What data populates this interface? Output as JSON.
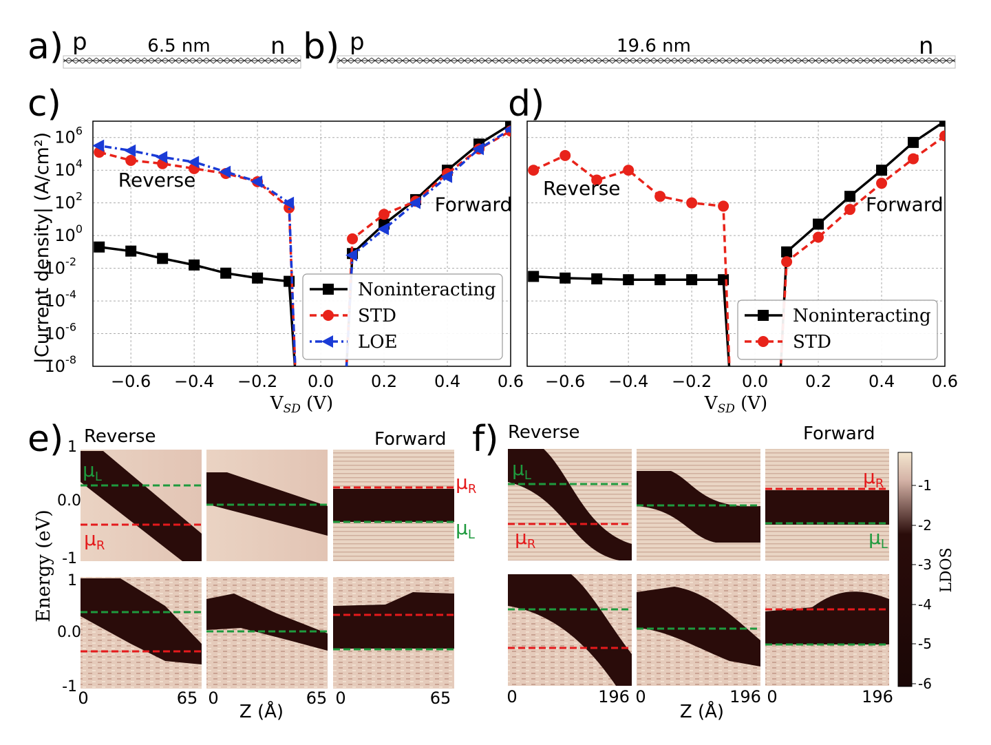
{
  "panel_labels": {
    "a": "a)",
    "b": "b)",
    "c": "c)",
    "d": "d)",
    "e": "e)",
    "f": "f)"
  },
  "top": {
    "a": {
      "left": "p",
      "right": "n",
      "length": "6.5 nm"
    },
    "b": {
      "left": "p",
      "right": "n",
      "length": "19.6 nm"
    }
  },
  "chart_data": [
    {
      "id": "c",
      "type": "line",
      "log_y": true,
      "xlabel_main": "V",
      "xlabel_sub": "SD",
      "xlabel_unit": "(V)",
      "ylabel": "|Current density| (A/cm²)",
      "xlim": [
        -0.72,
        0.6
      ],
      "ylim_exp": [
        -8,
        7
      ],
      "xticks": [
        "−0.6",
        "−0.4",
        "−0.2",
        "0.0",
        "0.2",
        "0.4",
        "0.6"
      ],
      "xtick_values": [
        -0.6,
        -0.4,
        -0.2,
        0.0,
        0.2,
        0.4,
        0.6
      ],
      "yticks_exp": [
        -8,
        -6,
        -4,
        -2,
        0,
        2,
        4,
        6
      ],
      "annotations": {
        "reverse": "Reverse",
        "forward": "Forward"
      },
      "legend": [
        "Noninteracting",
        "STD",
        "LOE"
      ],
      "series": [
        {
          "name": "Noninteracting",
          "color": "#000000",
          "marker": "square",
          "points": [
            [
              -0.7,
              -0.7
            ],
            [
              -0.6,
              -0.95
            ],
            [
              -0.5,
              -1.4
            ],
            [
              -0.4,
              -1.8
            ],
            [
              -0.3,
              -2.3
            ],
            [
              -0.2,
              -2.6
            ],
            [
              -0.1,
              -2.8
            ],
            [
              0.1,
              -1.1
            ],
            [
              0.2,
              0.7
            ],
            [
              0.3,
              2.2
            ],
            [
              0.4,
              4.0
            ],
            [
              0.5,
              5.6
            ],
            [
              0.6,
              6.8
            ]
          ]
        },
        {
          "name": "STD",
          "color": "#e8231a",
          "marker": "circle",
          "points": [
            [
              -0.7,
              5.1
            ],
            [
              -0.6,
              4.6
            ],
            [
              -0.5,
              4.4
            ],
            [
              -0.4,
              4.1
            ],
            [
              -0.3,
              3.8
            ],
            [
              -0.2,
              3.3
            ],
            [
              -0.1,
              1.7
            ],
            [
              0.1,
              -0.2
            ],
            [
              0.2,
              1.3
            ],
            [
              0.3,
              2.1
            ],
            [
              0.4,
              3.8
            ],
            [
              0.5,
              5.3
            ],
            [
              0.6,
              6.4
            ]
          ]
        },
        {
          "name": "LOE",
          "color": "#1a3bd6",
          "marker": "triangle-left",
          "points": [
            [
              -0.7,
              5.5
            ],
            [
              -0.6,
              5.2
            ],
            [
              -0.5,
              4.8
            ],
            [
              -0.4,
              4.5
            ],
            [
              -0.3,
              3.9
            ],
            [
              -0.2,
              3.3
            ],
            [
              -0.1,
              2.0
            ],
            [
              0.1,
              -1.2
            ],
            [
              0.2,
              0.4
            ],
            [
              0.3,
              2.0
            ],
            [
              0.4,
              3.6
            ],
            [
              0.5,
              5.3
            ],
            [
              0.6,
              6.5
            ]
          ]
        }
      ]
    },
    {
      "id": "d",
      "type": "line",
      "log_y": true,
      "xlabel_main": "V",
      "xlabel_sub": "SD",
      "xlabel_unit": "(V)",
      "ylabel": "",
      "xlim": [
        -0.72,
        0.6
      ],
      "ylim_exp": [
        -8,
        7
      ],
      "xticks": [
        "−0.6",
        "−0.4",
        "−0.2",
        "0.0",
        "0.2",
        "0.4",
        "0.6"
      ],
      "xtick_values": [
        -0.6,
        -0.4,
        -0.2,
        0.0,
        0.2,
        0.4,
        0.6
      ],
      "annotations": {
        "reverse": "Reverse",
        "forward": "Forward"
      },
      "legend": [
        "Noninteracting",
        "STD"
      ],
      "series": [
        {
          "name": "Noninteracting",
          "color": "#000000",
          "marker": "square",
          "points": [
            [
              -0.7,
              -2.5
            ],
            [
              -0.6,
              -2.6
            ],
            [
              -0.5,
              -2.65
            ],
            [
              -0.4,
              -2.7
            ],
            [
              -0.3,
              -2.7
            ],
            [
              -0.2,
              -2.7
            ],
            [
              -0.1,
              -2.7
            ],
            [
              0.1,
              -1.0
            ],
            [
              0.2,
              0.7
            ],
            [
              0.3,
              2.4
            ],
            [
              0.4,
              4.0
            ],
            [
              0.5,
              5.7
            ],
            [
              0.6,
              7.0
            ]
          ]
        },
        {
          "name": "STD",
          "color": "#e8231a",
          "marker": "circle",
          "points": [
            [
              -0.7,
              4.0
            ],
            [
              -0.6,
              4.9
            ],
            [
              -0.5,
              3.4
            ],
            [
              -0.4,
              4.0
            ],
            [
              -0.3,
              2.4
            ],
            [
              -0.2,
              2.0
            ],
            [
              -0.1,
              1.8
            ],
            [
              0.1,
              -1.6
            ],
            [
              0.2,
              -0.1
            ],
            [
              0.3,
              1.6
            ],
            [
              0.4,
              3.2
            ],
            [
              0.5,
              4.7
            ],
            [
              0.6,
              6.1
            ]
          ]
        }
      ]
    }
  ],
  "ldos": {
    "y_axis_label": "Energy (eV)",
    "x_axis_label": "Z (Å)",
    "e_yticks": [
      "1",
      "0.0",
      "-1"
    ],
    "e": {
      "reverse": "Reverse",
      "forward": "Forward",
      "xticks": [
        "0",
        "65"
      ]
    },
    "f": {
      "reverse": "Reverse",
      "forward": "Forward",
      "xticks": [
        "0",
        "196"
      ]
    },
    "mu_labels": {
      "muL": "μ",
      "muL_sub": "L",
      "muR": "μ",
      "muR_sub": "R"
    },
    "colorbar": {
      "label": "LDOS",
      "ticks": [
        "-1",
        "-2",
        "-3",
        "-4",
        "-5",
        "-6"
      ]
    },
    "colors": {
      "mu_L": "#1e9a3e",
      "mu_R": "#e41a1c",
      "dark": "#2a0c0a",
      "light": "#e3c6b6"
    }
  }
}
